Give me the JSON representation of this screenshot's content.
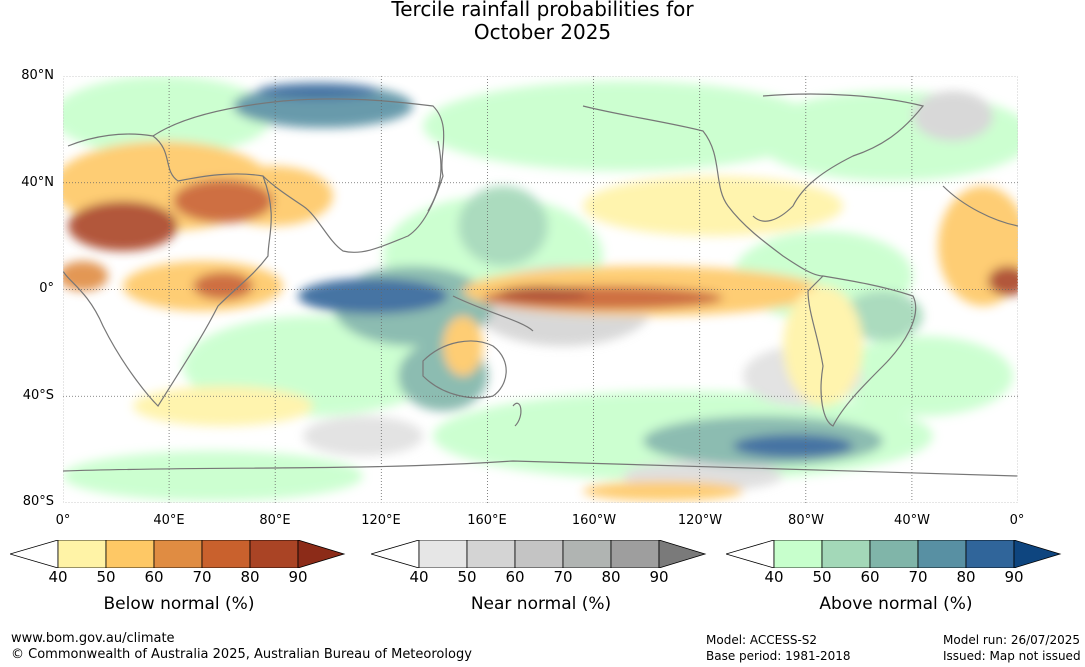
{
  "title_line1": "Tercile rainfall probabilities for",
  "title_line2": "October 2025",
  "lat_labels": [
    "80°N",
    "40°N",
    "0°",
    "40°S",
    "80°S"
  ],
  "lon_labels": [
    "0°",
    "40°E",
    "80°E",
    "120°E",
    "160°E",
    "160°W",
    "120°W",
    "80°W",
    "40°W",
    "0°"
  ],
  "colorbars": [
    {
      "label": "Below normal (%)",
      "ticks": [
        "40",
        "50",
        "60",
        "70",
        "80",
        "90"
      ],
      "colors": [
        "#fff3a6",
        "#fec865",
        "#e08c42",
        "#c9612d",
        "#aa4425",
        "#8c2b18"
      ]
    },
    {
      "label": "Near normal (%)",
      "ticks": [
        "40",
        "50",
        "60",
        "70",
        "80",
        "90"
      ],
      "colors": [
        "#e6e6e6",
        "#d4d4d4",
        "#c4c4c4",
        "#b0b4b2",
        "#9e9e9e",
        "#7a7a7a"
      ]
    },
    {
      "label": "Above normal (%)",
      "ticks": [
        "40",
        "50",
        "60",
        "70",
        "80",
        "90"
      ],
      "colors": [
        "#c7ffcc",
        "#a3d8b8",
        "#80b5a9",
        "#5890a3",
        "#30659a",
        "#0e457f"
      ]
    }
  ],
  "footer": {
    "url": "www.bom.gov.au/climate",
    "copyright": "© Commonwealth of Australia 2025, Australian Bureau of Meteorology",
    "model": "Model: ACCESS-S2",
    "base_period": "Base period: 1981-2018",
    "model_run": "Model run: 26/07/2025",
    "issued": "Issued: Map not issued"
  }
}
